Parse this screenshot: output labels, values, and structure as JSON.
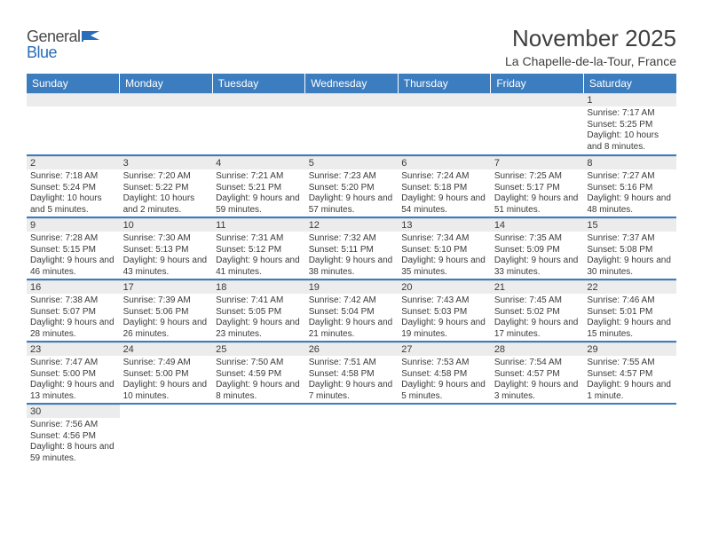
{
  "logo": {
    "part1": "General",
    "part2": "Blue"
  },
  "title": "November 2025",
  "subtitle": "La Chapelle-de-la-Tour, France",
  "colors": {
    "header_bg": "#3c7dc0",
    "header_fg": "#ffffff",
    "daynum_bg": "#ececec",
    "row_divider": "#3c7dc0",
    "text": "#3a3a3a",
    "logo_blue": "#2a6db8"
  },
  "dayHeaders": [
    "Sunday",
    "Monday",
    "Tuesday",
    "Wednesday",
    "Thursday",
    "Friday",
    "Saturday"
  ],
  "startCol": 6,
  "days": [
    {
      "n": 1,
      "sunrise": "7:17 AM",
      "sunset": "5:25 PM",
      "daylight": "10 hours and 8 minutes."
    },
    {
      "n": 2,
      "sunrise": "7:18 AM",
      "sunset": "5:24 PM",
      "daylight": "10 hours and 5 minutes."
    },
    {
      "n": 3,
      "sunrise": "7:20 AM",
      "sunset": "5:22 PM",
      "daylight": "10 hours and 2 minutes."
    },
    {
      "n": 4,
      "sunrise": "7:21 AM",
      "sunset": "5:21 PM",
      "daylight": "9 hours and 59 minutes."
    },
    {
      "n": 5,
      "sunrise": "7:23 AM",
      "sunset": "5:20 PM",
      "daylight": "9 hours and 57 minutes."
    },
    {
      "n": 6,
      "sunrise": "7:24 AM",
      "sunset": "5:18 PM",
      "daylight": "9 hours and 54 minutes."
    },
    {
      "n": 7,
      "sunrise": "7:25 AM",
      "sunset": "5:17 PM",
      "daylight": "9 hours and 51 minutes."
    },
    {
      "n": 8,
      "sunrise": "7:27 AM",
      "sunset": "5:16 PM",
      "daylight": "9 hours and 48 minutes."
    },
    {
      "n": 9,
      "sunrise": "7:28 AM",
      "sunset": "5:15 PM",
      "daylight": "9 hours and 46 minutes."
    },
    {
      "n": 10,
      "sunrise": "7:30 AM",
      "sunset": "5:13 PM",
      "daylight": "9 hours and 43 minutes."
    },
    {
      "n": 11,
      "sunrise": "7:31 AM",
      "sunset": "5:12 PM",
      "daylight": "9 hours and 41 minutes."
    },
    {
      "n": 12,
      "sunrise": "7:32 AM",
      "sunset": "5:11 PM",
      "daylight": "9 hours and 38 minutes."
    },
    {
      "n": 13,
      "sunrise": "7:34 AM",
      "sunset": "5:10 PM",
      "daylight": "9 hours and 35 minutes."
    },
    {
      "n": 14,
      "sunrise": "7:35 AM",
      "sunset": "5:09 PM",
      "daylight": "9 hours and 33 minutes."
    },
    {
      "n": 15,
      "sunrise": "7:37 AM",
      "sunset": "5:08 PM",
      "daylight": "9 hours and 30 minutes."
    },
    {
      "n": 16,
      "sunrise": "7:38 AM",
      "sunset": "5:07 PM",
      "daylight": "9 hours and 28 minutes."
    },
    {
      "n": 17,
      "sunrise": "7:39 AM",
      "sunset": "5:06 PM",
      "daylight": "9 hours and 26 minutes."
    },
    {
      "n": 18,
      "sunrise": "7:41 AM",
      "sunset": "5:05 PM",
      "daylight": "9 hours and 23 minutes."
    },
    {
      "n": 19,
      "sunrise": "7:42 AM",
      "sunset": "5:04 PM",
      "daylight": "9 hours and 21 minutes."
    },
    {
      "n": 20,
      "sunrise": "7:43 AM",
      "sunset": "5:03 PM",
      "daylight": "9 hours and 19 minutes."
    },
    {
      "n": 21,
      "sunrise": "7:45 AM",
      "sunset": "5:02 PM",
      "daylight": "9 hours and 17 minutes."
    },
    {
      "n": 22,
      "sunrise": "7:46 AM",
      "sunset": "5:01 PM",
      "daylight": "9 hours and 15 minutes."
    },
    {
      "n": 23,
      "sunrise": "7:47 AM",
      "sunset": "5:00 PM",
      "daylight": "9 hours and 13 minutes."
    },
    {
      "n": 24,
      "sunrise": "7:49 AM",
      "sunset": "5:00 PM",
      "daylight": "9 hours and 10 minutes."
    },
    {
      "n": 25,
      "sunrise": "7:50 AM",
      "sunset": "4:59 PM",
      "daylight": "9 hours and 8 minutes."
    },
    {
      "n": 26,
      "sunrise": "7:51 AM",
      "sunset": "4:58 PM",
      "daylight": "9 hours and 7 minutes."
    },
    {
      "n": 27,
      "sunrise": "7:53 AM",
      "sunset": "4:58 PM",
      "daylight": "9 hours and 5 minutes."
    },
    {
      "n": 28,
      "sunrise": "7:54 AM",
      "sunset": "4:57 PM",
      "daylight": "9 hours and 3 minutes."
    },
    {
      "n": 29,
      "sunrise": "7:55 AM",
      "sunset": "4:57 PM",
      "daylight": "9 hours and 1 minute."
    },
    {
      "n": 30,
      "sunrise": "7:56 AM",
      "sunset": "4:56 PM",
      "daylight": "8 hours and 59 minutes."
    }
  ]
}
